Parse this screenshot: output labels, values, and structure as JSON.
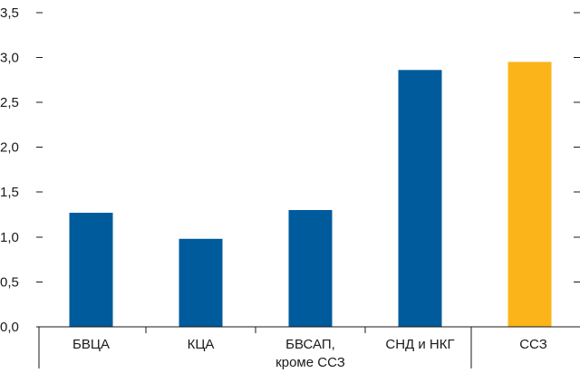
{
  "chart_data": {
    "type": "bar",
    "title": "",
    "xlabel": "",
    "ylabel": "",
    "ylim": [
      0,
      3.5
    ],
    "yticks": [
      "0,0",
      "0,5",
      "1,0",
      "1,5",
      "2,0",
      "2,5",
      "3,0",
      "3,5"
    ],
    "ytick_values": [
      0,
      0.5,
      1.0,
      1.5,
      2.0,
      2.5,
      3.0,
      3.5
    ],
    "categories": [
      [
        "БВЦА"
      ],
      [
        "КЦА"
      ],
      [
        "БВСАП,",
        "кроме ССЗ"
      ],
      [
        "СНД и НКГ"
      ],
      [
        "ССЗ"
      ]
    ],
    "values": [
      1.27,
      0.98,
      1.3,
      2.86,
      2.95
    ],
    "colors": [
      "#005b9c",
      "#005b9c",
      "#005b9c",
      "#005b9c",
      "#fbb41a"
    ],
    "grid": false,
    "legend": "none"
  }
}
